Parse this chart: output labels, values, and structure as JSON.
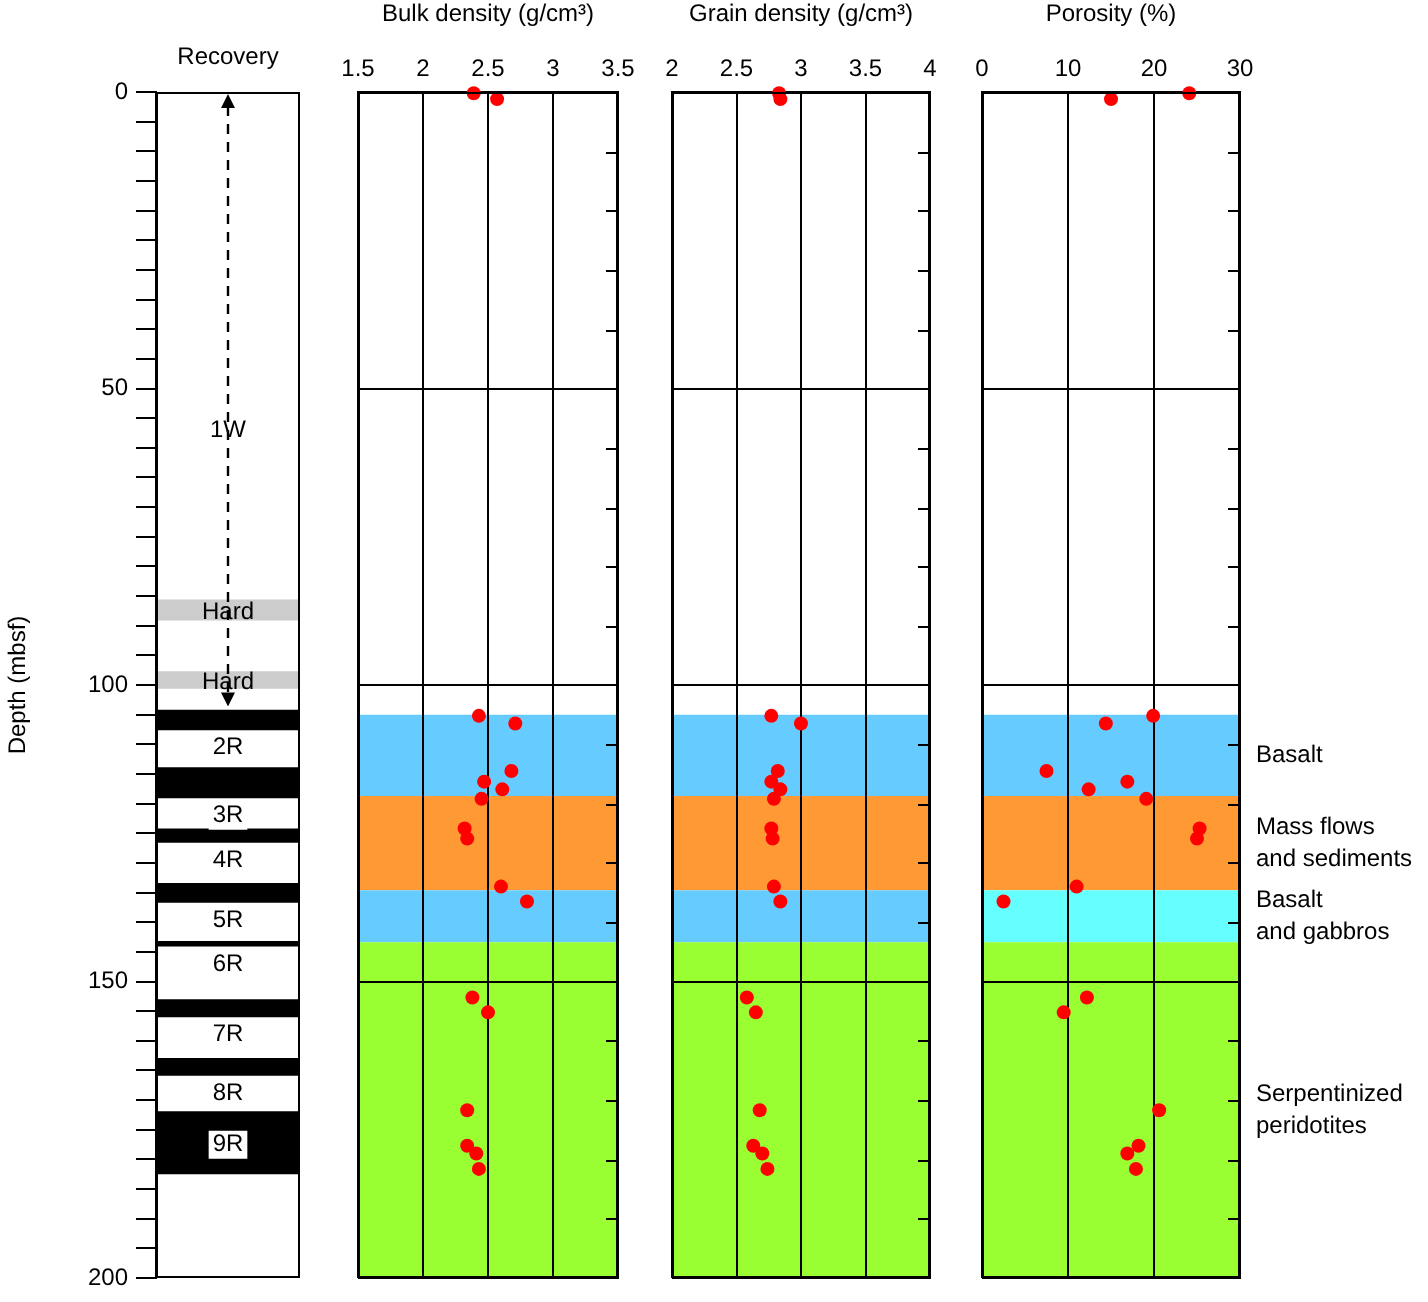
{
  "chart_data": [
    {
      "type": "bar",
      "ylabel": "Depth (mbsf)",
      "categories": [
        "Recovery"
      ],
      "ylim": [
        200,
        0
      ],
      "yticks": [
        0,
        {
          "value": 5,
          "label": null
        },
        {
          "value": 10,
          "label": null
        },
        {
          "value": 15,
          "label": null
        },
        {
          "value": 20,
          "label": null
        },
        {
          "value": 25,
          "label": null
        },
        {
          "value": 30,
          "label": null
        },
        {
          "value": 35,
          "label": null
        },
        {
          "value": 40,
          "label": null
        },
        {
          "value": 45,
          "label": null
        },
        50,
        {
          "value": 55,
          "label": null
        },
        {
          "value": 60,
          "label": null
        },
        {
          "value": 65,
          "label": null
        },
        {
          "value": 70,
          "label": null
        },
        {
          "value": 75,
          "label": null
        },
        {
          "value": 80,
          "label": null
        },
        {
          "value": 85,
          "label": null
        },
        {
          "value": 90,
          "label": null
        },
        {
          "value": 95,
          "label": null
        },
        100,
        {
          "value": 105,
          "label": null
        },
        {
          "value": 110,
          "label": null
        },
        {
          "value": 115,
          "label": null
        },
        {
          "value": 120,
          "label": null
        },
        {
          "value": 125,
          "label": null
        },
        {
          "value": 130,
          "label": null
        },
        {
          "value": 135,
          "label": null
        },
        {
          "value": 140,
          "label": null
        },
        {
          "value": 145,
          "label": null
        },
        150,
        {
          "value": 155,
          "label": null
        },
        {
          "value": 160,
          "label": null
        },
        {
          "value": 165,
          "label": null
        },
        {
          "value": 170,
          "label": null
        },
        {
          "value": 175,
          "label": null
        },
        {
          "value": 180,
          "label": null
        },
        {
          "value": 185,
          "label": null
        },
        {
          "value": 190,
          "label": null
        },
        {
          "value": 195,
          "label": null
        },
        200
      ],
      "annotations": [
        {
          "text": "1W",
          "y": 57
        }
      ],
      "series": [
        {
          "name": "Hard",
          "color": "#cccccc",
          "values": [
            3.3
          ],
          "base": [
            85.7
          ]
        },
        {
          "name": "Hard",
          "color": "#cccccc",
          "values": [
            2.7
          ],
          "base": [
            97.8
          ]
        },
        {
          "name": "2R",
          "color": "#000000",
          "values": [
            3.2
          ],
          "base": [
            104.3
          ]
        },
        {
          "name": "3R",
          "color": "#000000",
          "values": [
            5
          ],
          "base": [
            114
          ]
        },
        {
          "name": "4R",
          "color": "#000000",
          "values": [
            2.2
          ],
          "base": [
            124.3
          ]
        },
        {
          "name": "5R",
          "color": "#000000",
          "values": [
            3.1
          ],
          "base": [
            133.5
          ]
        },
        {
          "name": "6R",
          "color": "#000000",
          "values": [
            0.7
          ],
          "base": [
            143.3
          ]
        },
        {
          "name": "7R",
          "color": "#000000",
          "values": [
            2.8
          ],
          "base": [
            153.1
          ]
        },
        {
          "name": "8R",
          "color": "#000000",
          "values": [
            2.8
          ],
          "base": [
            163
          ]
        },
        {
          "name": "9R",
          "color": "#000000",
          "values": [
            10.4
          ],
          "base": [
            172
          ]
        }
      ]
    },
    {
      "type": "scatter",
      "xlabel": "Bulk density (g/cm³)",
      "xlim": [
        1.5,
        3.5
      ],
      "xticks": [
        1.5,
        2,
        2.5,
        3,
        3.5
      ],
      "ylim": [
        200,
        0
      ],
      "yticks": [
        0,
        {
          "value": 10,
          "label": null
        },
        {
          "value": 20,
          "label": null
        },
        {
          "value": 30,
          "label": null
        },
        {
          "value": 40,
          "label": null
        },
        50,
        {
          "value": 60,
          "label": null
        },
        {
          "value": 70,
          "label": null
        },
        {
          "value": 80,
          "label": null
        },
        {
          "value": 90,
          "label": null
        },
        100,
        {
          "value": 110,
          "label": null
        },
        {
          "value": 120,
          "label": null
        },
        {
          "value": 130,
          "label": null
        },
        {
          "value": 140,
          "label": null
        },
        150,
        {
          "value": 160,
          "label": null
        },
        {
          "value": 170,
          "label": null
        },
        {
          "value": 180,
          "label": null
        },
        {
          "value": 190,
          "label": null
        },
        200
      ],
      "tick_labels": "x",
      "grid": true,
      "marker": "circle",
      "bands": [
        {
          "axis": "y",
          "from": 105,
          "to": 118.7,
          "color": "#66ccff"
        },
        {
          "axis": "y",
          "from": 118.7,
          "to": 134.6,
          "color": "#ff9933"
        },
        {
          "axis": "y",
          "from": 134.6,
          "to": 143.4,
          "color": "#66ccff"
        },
        {
          "axis": "y",
          "from": 143.4,
          "to": 200,
          "color": "#99ff33"
        }
      ],
      "series": [
        {
          "color": "#ff0000",
          "x": [
            2.39,
            2.57,
            2.43,
            2.71,
            2.68,
            2.47,
            2.61,
            2.45,
            2.32,
            2.34,
            2.6,
            2.8,
            2.38,
            2.5,
            2.34,
            2.34,
            2.41,
            2.43
          ],
          "values": [
            0.2,
            1.2,
            105.2,
            106.5,
            114.5,
            116.3,
            117.6,
            119.2,
            124.2,
            125.9,
            134,
            136.5,
            152.7,
            155.2,
            171.7,
            177.7,
            179,
            181.6
          ]
        }
      ]
    },
    {
      "type": "scatter",
      "xlabel": "Grain density (g/cm³)",
      "xlim": [
        2,
        4
      ],
      "xticks": [
        2,
        2.5,
        3,
        3.5,
        4
      ],
      "ylim": [
        200,
        0
      ],
      "yticks": [
        0,
        {
          "value": 10,
          "label": null
        },
        {
          "value": 20,
          "label": null
        },
        {
          "value": 30,
          "label": null
        },
        {
          "value": 40,
          "label": null
        },
        50,
        {
          "value": 60,
          "label": null
        },
        {
          "value": 70,
          "label": null
        },
        {
          "value": 80,
          "label": null
        },
        {
          "value": 90,
          "label": null
        },
        100,
        {
          "value": 110,
          "label": null
        },
        {
          "value": 120,
          "label": null
        },
        {
          "value": 130,
          "label": null
        },
        {
          "value": 140,
          "label": null
        },
        150,
        {
          "value": 160,
          "label": null
        },
        {
          "value": 170,
          "label": null
        },
        {
          "value": 180,
          "label": null
        },
        {
          "value": 190,
          "label": null
        },
        200
      ],
      "tick_labels": "x",
      "grid": true,
      "marker": "circle",
      "bands": [
        {
          "axis": "y",
          "from": 105,
          "to": 118.7,
          "color": "#66ccff"
        },
        {
          "axis": "y",
          "from": 118.7,
          "to": 134.6,
          "color": "#ff9933"
        },
        {
          "axis": "y",
          "from": 134.6,
          "to": 143.4,
          "color": "#66ccff"
        },
        {
          "axis": "y",
          "from": 143.4,
          "to": 200,
          "color": "#99ff33"
        }
      ],
      "series": [
        {
          "color": "#ff0000",
          "x": [
            2.83,
            2.84,
            2.77,
            3,
            2.82,
            2.77,
            2.84,
            2.79,
            2.77,
            2.78,
            2.79,
            2.84,
            2.58,
            2.65,
            2.68,
            2.63,
            2.7,
            2.74
          ],
          "values": [
            0.2,
            1.2,
            105.2,
            106.5,
            114.5,
            116.3,
            117.6,
            119.2,
            124.2,
            125.9,
            134,
            136.5,
            152.7,
            155.2,
            171.7,
            177.7,
            179,
            181.6
          ]
        }
      ]
    },
    {
      "type": "scatter",
      "xlabel": "Porosity (%)",
      "xlim": [
        0,
        30
      ],
      "xticks": [
        0,
        10,
        20,
        30
      ],
      "ylim": [
        200,
        0
      ],
      "yticks": [
        0,
        {
          "value": 10,
          "label": null
        },
        {
          "value": 20,
          "label": null
        },
        {
          "value": 30,
          "label": null
        },
        {
          "value": 40,
          "label": null
        },
        50,
        {
          "value": 60,
          "label": null
        },
        {
          "value": 70,
          "label": null
        },
        {
          "value": 80,
          "label": null
        },
        {
          "value": 90,
          "label": null
        },
        100,
        {
          "value": 110,
          "label": null
        },
        {
          "value": 120,
          "label": null
        },
        {
          "value": 130,
          "label": null
        },
        {
          "value": 140,
          "label": null
        },
        150,
        {
          "value": 160,
          "label": null
        },
        {
          "value": 170,
          "label": null
        },
        {
          "value": 180,
          "label": null
        },
        {
          "value": 190,
          "label": null
        },
        200
      ],
      "tick_labels": "x",
      "grid": true,
      "marker": "circle",
      "bands": [
        {
          "axis": "y",
          "from": 105,
          "to": 118.7,
          "color": "#66ccff",
          "label": "Basalt"
        },
        {
          "axis": "y",
          "from": 118.7,
          "to": 134.6,
          "color": "#ff9933",
          "label": "Mass flows\nand sediments"
        },
        {
          "axis": "y",
          "from": 134.6,
          "to": 143.4,
          "color": "#66ffff",
          "label": "Basalt\nand gabbros"
        },
        {
          "axis": "y",
          "from": 143.4,
          "to": 200,
          "color": "#99ff33",
          "label": "Serpentinized\nperidotites"
        }
      ],
      "series": [
        {
          "color": "#ff0000",
          "x": [
            24.1,
            15,
            19.9,
            14.4,
            7.5,
            16.9,
            12.4,
            19.1,
            25.3,
            25,
            11,
            2.5,
            12.2,
            9.5,
            20.6,
            18.2,
            16.9,
            17.9
          ],
          "values": [
            0.2,
            1.2,
            105.2,
            106.5,
            114.5,
            116.3,
            117.6,
            119.2,
            124.2,
            125.9,
            134,
            136.5,
            152.7,
            155.2,
            171.7,
            177.7,
            179,
            181.6
          ]
        }
      ]
    }
  ]
}
